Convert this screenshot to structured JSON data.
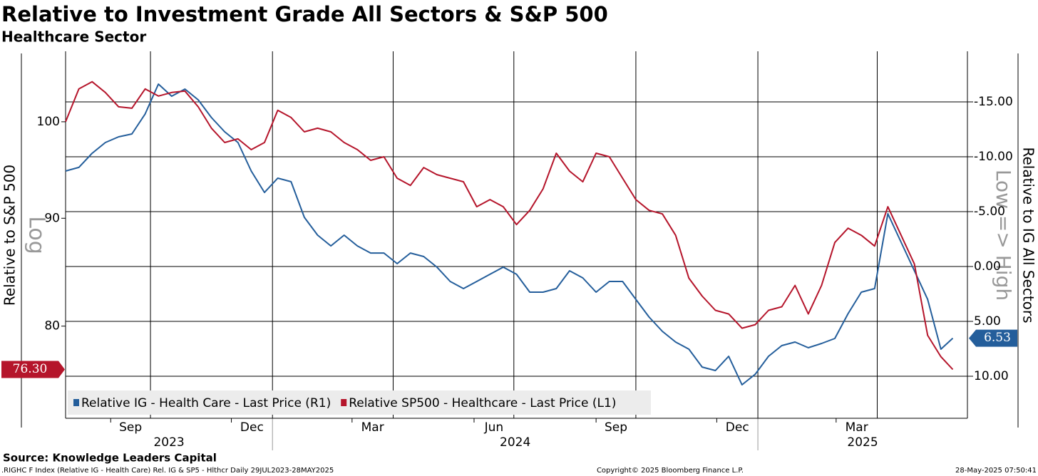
{
  "chart_data": {
    "type": "line",
    "title": "Relative to Investment Grade All Sectors & S&P 500",
    "subtitle": "Healthcare Sector",
    "ylabel": "Relative to S&P 500",
    "ylog": true,
    "ylog_label": "Log",
    "y2label": "Relative to IG All Sectors",
    "y2direction_label": "Low => High",
    "source": "Source: Knowledge Leaders Capital",
    "footer_left": ".RIGHC F Index (Relative IG - Health Care) Rel. IG & SP5 - Hlthcr  Daily 29JUL2023-28MAY2025",
    "footer_center": "Copyright© 2025 Bloomberg Finance L.P.",
    "footer_right": "28-May-2025 07:50:41",
    "xlim": [
      "2023-07-29",
      "2025-06-08"
    ],
    "xticks": [
      {
        "value": "2023-09-01",
        "label": "Sep"
      },
      {
        "value": "2023-12-01",
        "label": "Dec"
      },
      {
        "value": "2024-03-01",
        "label": "Mar"
      },
      {
        "value": "2024-06-01",
        "label": "Jun"
      },
      {
        "value": "2024-09-01",
        "label": "Sep"
      },
      {
        "value": "2024-12-01",
        "label": "Dec"
      },
      {
        "value": "2025-03-01",
        "label": "Mar"
      }
    ],
    "years": [
      2023,
      2024,
      2025
    ],
    "ylim": [
      72.34,
      108.0
    ],
    "yticks": [
      80,
      90,
      100
    ],
    "y2lim": [
      13.83,
      -19.61
    ],
    "y2ticks": [
      {
        "value": -15,
        "label": "-15.00"
      },
      {
        "value": -10,
        "label": "-10.00"
      },
      {
        "value": -5,
        "label": "-5.00"
      },
      {
        "value": 0,
        "label": "0.00"
      },
      {
        "value": 5,
        "label": "5.00"
      },
      {
        "value": 10,
        "label": "10.00"
      }
    ],
    "grid": true,
    "x": [
      "2023-07-29",
      "2023-08-08",
      "2023-08-18",
      "2023-08-28",
      "2023-09-07",
      "2023-09-17",
      "2023-09-27",
      "2023-10-07",
      "2023-10-17",
      "2023-10-27",
      "2023-11-06",
      "2023-11-16",
      "2023-11-26",
      "2023-12-06",
      "2023-12-16",
      "2023-12-26",
      "2024-01-05",
      "2024-01-15",
      "2024-01-25",
      "2024-02-04",
      "2024-02-14",
      "2024-02-24",
      "2024-03-05",
      "2024-03-15",
      "2024-03-25",
      "2024-04-04",
      "2024-04-14",
      "2024-04-24",
      "2024-05-04",
      "2024-05-14",
      "2024-05-24",
      "2024-06-03",
      "2024-06-13",
      "2024-06-23",
      "2024-07-03",
      "2024-07-13",
      "2024-07-23",
      "2024-08-02",
      "2024-08-12",
      "2024-08-22",
      "2024-09-01",
      "2024-09-11",
      "2024-09-21",
      "2024-10-01",
      "2024-10-11",
      "2024-10-21",
      "2024-10-31",
      "2024-11-10",
      "2024-11-20",
      "2024-11-30",
      "2024-12-10",
      "2024-12-20",
      "2024-12-30",
      "2025-01-09",
      "2025-01-19",
      "2025-01-29",
      "2025-02-08",
      "2025-02-18",
      "2025-02-28",
      "2025-03-10",
      "2025-03-20",
      "2025-03-30",
      "2025-04-09",
      "2025-04-19",
      "2025-04-29",
      "2025-05-09",
      "2025-05-19",
      "2025-05-28"
    ],
    "series": [
      {
        "name": "Relative IG - Health Care - Last Price (R1)",
        "color": "#245e9b",
        "axis": "y2",
        "last_value_label": "6.53",
        "values": [
          -8.7,
          -9.03,
          -10.32,
          -11.3,
          -11.82,
          -12.08,
          -13.9,
          -16.62,
          -15.52,
          -16.17,
          -15.19,
          -13.57,
          -12.27,
          -11.3,
          -8.7,
          -6.75,
          -8.05,
          -7.73,
          -4.48,
          -2.86,
          -1.88,
          -2.86,
          -1.88,
          -1.23,
          -1.23,
          -0.26,
          -1.23,
          -0.91,
          0.06,
          1.36,
          2.01,
          1.36,
          0.71,
          0.06,
          0.71,
          2.34,
          2.34,
          2.01,
          0.39,
          1.04,
          2.34,
          1.36,
          1.36,
          2.99,
          4.61,
          5.91,
          6.88,
          7.53,
          9.16,
          9.48,
          8.18,
          10.78,
          9.81,
          8.18,
          7.21,
          6.88,
          7.4,
          7.01,
          6.56,
          4.29,
          2.34,
          2.01,
          -4.81,
          -2.21,
          0.39,
          2.99,
          7.53,
          6.53
        ]
      },
      {
        "name": "Relative SP500 - Healthcare - Last Price (L1)",
        "color": "#b5152b",
        "last_value_label": "76.30",
        "values": [
          100.0,
          103.65,
          104.47,
          103.25,
          101.65,
          101.49,
          103.65,
          102.85,
          103.25,
          103.41,
          101.65,
          99.3,
          97.76,
          98.15,
          97.0,
          97.76,
          101.26,
          100.47,
          98.91,
          99.3,
          98.91,
          97.76,
          97.0,
          95.88,
          96.25,
          94.02,
          93.29,
          95.13,
          94.39,
          94.02,
          93.66,
          91.14,
          91.85,
          91.14,
          89.38,
          90.78,
          92.93,
          96.63,
          94.76,
          93.66,
          96.63,
          96.25,
          94.02,
          91.85,
          90.78,
          90.43,
          88.34,
          84.3,
          82.67,
          81.39,
          81.07,
          79.82,
          80.13,
          81.39,
          81.71,
          83.64,
          81.07,
          83.64,
          87.65,
          89.03,
          88.34,
          87.31,
          91.14,
          88.34,
          85.62,
          79.2,
          77.37,
          76.3
        ]
      }
    ]
  }
}
